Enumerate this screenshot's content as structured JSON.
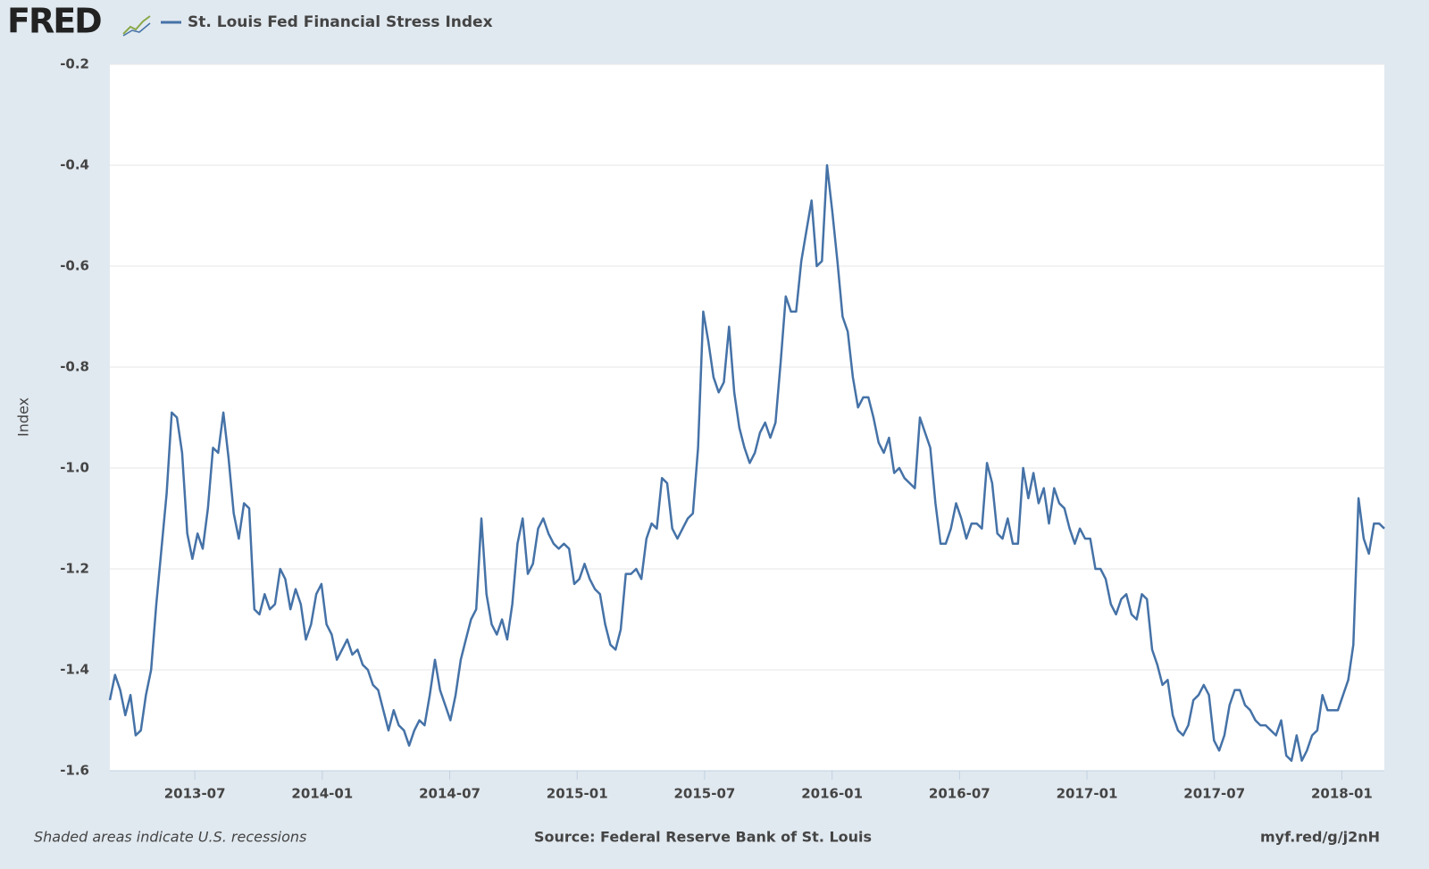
{
  "logo": "FRED",
  "footer": {
    "note": "Shaded areas indicate U.S. recessions",
    "source": "Source: Federal Reserve Bank of St. Louis",
    "link": "myf.red/g/j2nH"
  },
  "chart_data": {
    "type": "line",
    "ylabel": "Index",
    "ylim": [
      -1.6,
      -0.2
    ],
    "yticks": [
      -0.2,
      -0.4,
      -0.6,
      -0.8,
      {
        "value": -1,
        "label": "-1.0"
      },
      -1.2,
      -1.4,
      -1.6
    ],
    "xlim": [
      "2013-03",
      "2018-03"
    ],
    "xticks": [
      "2013-07",
      "2014-01",
      "2014-07",
      "2015-01",
      "2015-07",
      "2016-01",
      "2016-07",
      "2017-01",
      "2017-07",
      "2018-01"
    ],
    "grid": true,
    "series": [
      {
        "name": "St. Louis Fed Financial Stress Index",
        "color": "#4572a7",
        "values": [
          -1.46,
          -1.41,
          -1.44,
          -1.49,
          -1.45,
          -1.53,
          -1.52,
          -1.45,
          -1.4,
          -1.27,
          -1.16,
          -1.05,
          -0.89,
          -0.9,
          -0.97,
          -1.13,
          -1.18,
          -1.13,
          -1.16,
          -1.08,
          -0.96,
          -0.97,
          -0.89,
          -0.98,
          -1.09,
          -1.14,
          -1.07,
          -1.08,
          -1.28,
          -1.29,
          -1.25,
          -1.28,
          -1.27,
          -1.2,
          -1.22,
          -1.28,
          -1.24,
          -1.27,
          -1.34,
          -1.31,
          -1.25,
          -1.23,
          -1.31,
          -1.33,
          -1.38,
          -1.36,
          -1.34,
          -1.37,
          -1.36,
          -1.39,
          -1.4,
          -1.43,
          -1.44,
          -1.48,
          -1.52,
          -1.48,
          -1.51,
          -1.52,
          -1.55,
          -1.52,
          -1.5,
          -1.51,
          -1.45,
          -1.38,
          -1.44,
          -1.47,
          -1.5,
          -1.45,
          -1.38,
          -1.34,
          -1.3,
          -1.28,
          -1.1,
          -1.25,
          -1.31,
          -1.33,
          -1.3,
          -1.34,
          -1.27,
          -1.15,
          -1.1,
          -1.21,
          -1.19,
          -1.12,
          -1.1,
          -1.13,
          -1.15,
          -1.16,
          -1.15,
          -1.16,
          -1.23,
          -1.22,
          -1.19,
          -1.22,
          -1.24,
          -1.25,
          -1.31,
          -1.35,
          -1.36,
          -1.32,
          -1.21,
          -1.21,
          -1.2,
          -1.22,
          -1.14,
          -1.11,
          -1.12,
          -1.02,
          -1.03,
          -1.12,
          -1.14,
          -1.12,
          -1.1,
          -1.09,
          -0.96,
          -0.69,
          -0.75,
          -0.82,
          -0.85,
          -0.83,
          -0.72,
          -0.85,
          -0.92,
          -0.96,
          -0.99,
          -0.97,
          -0.93,
          -0.91,
          -0.94,
          -0.91,
          -0.79,
          -0.66,
          -0.69,
          -0.69,
          -0.59,
          -0.53,
          -0.47,
          -0.6,
          -0.59,
          -0.4,
          -0.49,
          -0.59,
          -0.7,
          -0.73,
          -0.82,
          -0.88,
          -0.86,
          -0.86,
          -0.9,
          -0.95,
          -0.97,
          -0.94,
          -1.01,
          -1.0,
          -1.02,
          -1.03,
          -1.04,
          -0.9,
          -0.93,
          -0.96,
          -1.07,
          -1.15,
          -1.15,
          -1.12,
          -1.07,
          -1.1,
          -1.14,
          -1.11,
          -1.11,
          -1.12,
          -0.99,
          -1.03,
          -1.13,
          -1.14,
          -1.1,
          -1.15,
          -1.15,
          -1.0,
          -1.06,
          -1.01,
          -1.07,
          -1.04,
          -1.11,
          -1.04,
          -1.07,
          -1.08,
          -1.12,
          -1.15,
          -1.12,
          -1.14,
          -1.14,
          -1.2,
          -1.2,
          -1.22,
          -1.27,
          -1.29,
          -1.26,
          -1.25,
          -1.29,
          -1.3,
          -1.25,
          -1.26,
          -1.36,
          -1.39,
          -1.43,
          -1.42,
          -1.49,
          -1.52,
          -1.53,
          -1.51,
          -1.46,
          -1.45,
          -1.43,
          -1.45,
          -1.54,
          -1.56,
          -1.53,
          -1.47,
          -1.44,
          -1.44,
          -1.47,
          -1.48,
          -1.5,
          -1.51,
          -1.51,
          -1.52,
          -1.53,
          -1.5,
          -1.57,
          -1.58,
          -1.53,
          -1.58,
          -1.56,
          -1.53,
          -1.52,
          -1.45,
          -1.48,
          -1.48,
          -1.48,
          -1.45,
          -1.42,
          -1.35,
          -1.06,
          -1.14,
          -1.17,
          -1.11,
          -1.11,
          -1.12
        ]
      }
    ]
  }
}
